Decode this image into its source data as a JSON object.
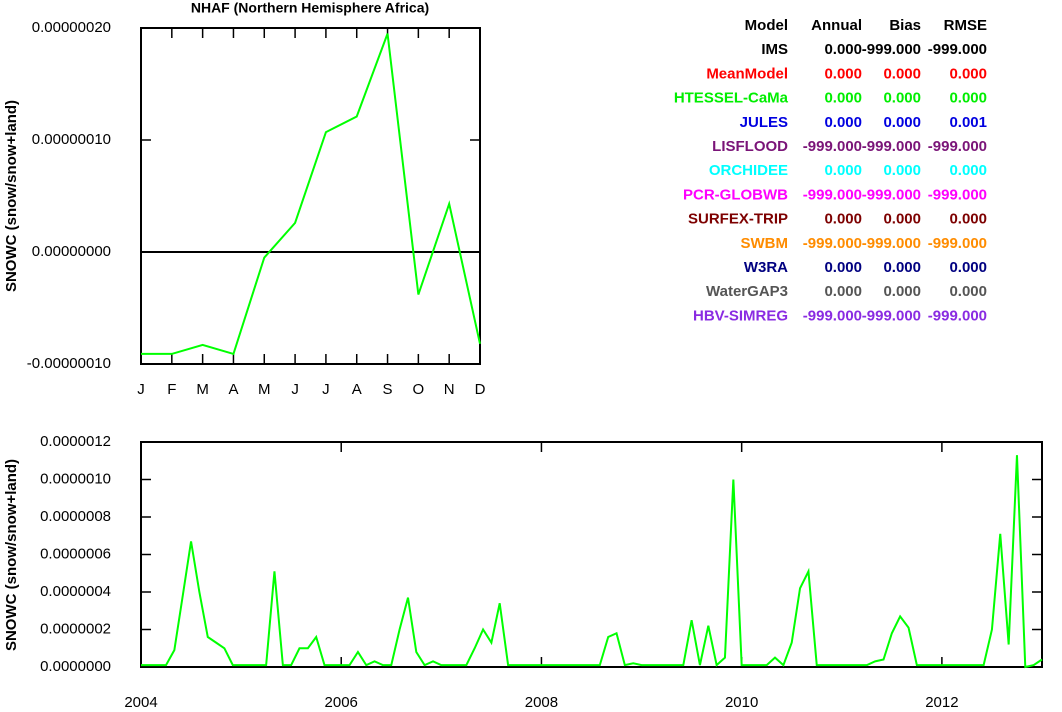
{
  "chart_data": [
    {
      "type": "line",
      "title": "NHAF (Northern Hemisphere Africa)",
      "y_label": "SNOWC (snow/snow+land)",
      "categories": [
        "J",
        "F",
        "M",
        "A",
        "M",
        "J",
        "J",
        "A",
        "S",
        "O",
        "N",
        "D"
      ],
      "series": [
        {
          "name": "HTESSEL-CaMa",
          "color": "#00ff00",
          "values": [
            -9.1e-08,
            -9.1e-08,
            -8.3e-08,
            -9.1e-08,
            -5e-09,
            2.6e-08,
            1.07e-07,
            1.21e-07,
            1.95e-07,
            -3.8e-08,
            4.3e-08,
            -8.2e-08
          ]
        }
      ],
      "ylim": [
        -1e-07,
        2e-07
      ],
      "yticks": [
        {
          "value": -1e-07,
          "label": "-0.00000010"
        },
        {
          "value": 0,
          "label": "0.00000000"
        },
        {
          "value": 1e-07,
          "label": "0.00000010"
        },
        {
          "value": 2e-07,
          "label": "0.00000020"
        }
      ],
      "hline": 0
    },
    {
      "type": "line",
      "y_label": "SNOWC (snow/snow+land)",
      "x": [
        2004,
        2004.083,
        2004.167,
        2004.25,
        2004.333,
        2004.417,
        2004.5,
        2004.583,
        2004.667,
        2004.75,
        2004.833,
        2004.917,
        2005,
        2005.083,
        2005.167,
        2005.25,
        2005.333,
        2005.417,
        2005.5,
        2005.583,
        2005.667,
        2005.75,
        2005.833,
        2005.917,
        2006,
        2006.083,
        2006.167,
        2006.25,
        2006.333,
        2006.417,
        2006.5,
        2006.583,
        2006.667,
        2006.75,
        2006.833,
        2006.917,
        2007,
        2007.083,
        2007.167,
        2007.25,
        2007.333,
        2007.417,
        2007.5,
        2007.583,
        2007.667,
        2007.75,
        2007.833,
        2007.917,
        2008,
        2008.083,
        2008.167,
        2008.25,
        2008.333,
        2008.417,
        2008.5,
        2008.583,
        2008.667,
        2008.75,
        2008.833,
        2008.917,
        2009,
        2009.083,
        2009.167,
        2009.25,
        2009.333,
        2009.417,
        2009.5,
        2009.583,
        2009.667,
        2009.75,
        2009.833,
        2009.917,
        2010,
        2010.083,
        2010.167,
        2010.25,
        2010.333,
        2010.417,
        2010.5,
        2010.583,
        2010.667,
        2010.75,
        2010.833,
        2010.917,
        2011,
        2011.083,
        2011.167,
        2011.25,
        2011.333,
        2011.417,
        2011.5,
        2011.583,
        2011.667,
        2011.75,
        2011.833,
        2011.917,
        2012,
        2012.083,
        2012.167,
        2012.25,
        2012.333,
        2012.417,
        2012.5,
        2012.583,
        2012.667,
        2012.75,
        2012.833,
        2012.917,
        2013
      ],
      "series": [
        {
          "name": "HTESSEL-CaMa",
          "color": "#00ff00",
          "values": [
            1e-08,
            1e-08,
            1e-08,
            1e-08,
            9e-08,
            3.8e-07,
            6.7e-07,
            4e-07,
            1.6e-07,
            1.3e-07,
            1e-07,
            1e-08,
            1e-08,
            1e-08,
            1e-08,
            1e-08,
            5.1e-07,
            1e-08,
            1e-08,
            1e-07,
            1e-07,
            1.6e-07,
            1e-08,
            1e-08,
            1e-08,
            1e-08,
            8e-08,
            1e-08,
            3e-08,
            1e-08,
            1e-08,
            2e-07,
            3.7e-07,
            8e-08,
            1e-08,
            3e-08,
            1e-08,
            1e-08,
            1e-08,
            1e-08,
            1e-07,
            2e-07,
            1.3e-07,
            3.4e-07,
            1e-08,
            1e-08,
            1e-08,
            1e-08,
            1e-08,
            1e-08,
            1e-08,
            1e-08,
            1e-08,
            1e-08,
            1e-08,
            1e-08,
            1.6e-07,
            1.8e-07,
            1e-08,
            2e-08,
            1e-08,
            1e-08,
            1e-08,
            1e-08,
            1e-08,
            1e-08,
            2.5e-07,
            1e-08,
            2.2e-07,
            1e-08,
            5e-08,
            1e-06,
            1e-08,
            1e-08,
            1e-08,
            1e-08,
            5e-08,
            1e-08,
            1.3e-07,
            4.2e-07,
            5.1e-07,
            1e-08,
            1e-08,
            1e-08,
            1e-08,
            1e-08,
            1e-08,
            1e-08,
            3e-08,
            4e-08,
            1.8e-07,
            2.7e-07,
            2.1e-07,
            1e-08,
            1e-08,
            1e-08,
            1e-08,
            1e-08,
            1e-08,
            1e-08,
            1e-08,
            1e-08,
            2e-07,
            7.1e-07,
            1.2e-07,
            1.13e-06,
            0,
            1e-08,
            4e-08
          ]
        }
      ],
      "xlim": [
        2004,
        2013
      ],
      "xticks": [
        2004,
        2006,
        2008,
        2010,
        2012
      ],
      "ylim": [
        0,
        1.2e-06
      ],
      "yticks": [
        {
          "value": 0,
          "label": "0.0000000"
        },
        {
          "value": 2e-07,
          "label": "0.0000002"
        },
        {
          "value": 4e-07,
          "label": "0.0000004"
        },
        {
          "value": 6e-07,
          "label": "0.0000006"
        },
        {
          "value": 8e-07,
          "label": "0.0000008"
        },
        {
          "value": 1e-06,
          "label": "0.0000010"
        },
        {
          "value": 1.2e-06,
          "label": "0.0000012"
        }
      ]
    }
  ],
  "table": {
    "columns": [
      "Model",
      "Annual",
      "Bias",
      "RMSE"
    ],
    "rows": [
      {
        "name": "IMS",
        "color": "#000000",
        "values": [
          "0.000",
          "-999.000",
          "-999.000"
        ]
      },
      {
        "name": "MeanModel",
        "color": "#ff0000",
        "values": [
          "0.000",
          "0.000",
          "0.000"
        ]
      },
      {
        "name": "HTESSEL-CaMa",
        "color": "#00ee00",
        "values": [
          "0.000",
          "0.000",
          "0.000"
        ]
      },
      {
        "name": "JULES",
        "color": "#0000e0",
        "values": [
          "0.000",
          "0.000",
          "0.001"
        ]
      },
      {
        "name": "LISFLOOD",
        "color": "#7a1478",
        "values": [
          "-999.000",
          "-999.000",
          "-999.000"
        ]
      },
      {
        "name": "ORCHIDEE",
        "color": "#00ffff",
        "values": [
          "0.000",
          "0.000",
          "0.000"
        ]
      },
      {
        "name": "PCR-GLOBWB",
        "color": "#ff00ff",
        "values": [
          "-999.000",
          "-999.000",
          "-999.000"
        ]
      },
      {
        "name": "SURFEX-TRIP",
        "color": "#7d0000",
        "values": [
          "0.000",
          "0.000",
          "0.000"
        ]
      },
      {
        "name": "SWBM",
        "color": "#ff8c00",
        "values": [
          "-999.000",
          "-999.000",
          "-999.000"
        ]
      },
      {
        "name": "W3RA",
        "color": "#000080",
        "values": [
          "0.000",
          "0.000",
          "0.000"
        ]
      },
      {
        "name": "WaterGAP3",
        "color": "#555555",
        "values": [
          "0.000",
          "0.000",
          "0.000"
        ]
      },
      {
        "name": "HBV-SIMREG",
        "color": "#8a2be2",
        "values": [
          "-999.000",
          "-999.000",
          "-999.000"
        ]
      }
    ]
  }
}
